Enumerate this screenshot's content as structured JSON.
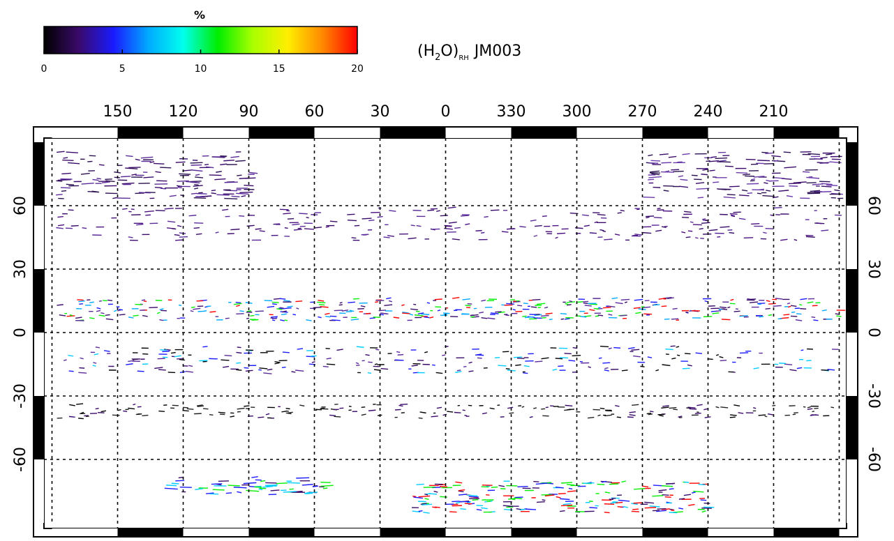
{
  "colorbar": {
    "label": "%",
    "lim": [
      0,
      20
    ],
    "ticks": [
      0,
      5,
      10,
      15,
      20
    ],
    "colors": [
      "#000000",
      "#3a0a6a",
      "#1a1aff",
      "#00aaff",
      "#00ffee",
      "#00ee00",
      "#aaff00",
      "#ffee00",
      "#ff8800",
      "#ff0000"
    ]
  },
  "title": {
    "prefix": "(H",
    "sub1": "2",
    "mid": "O)",
    "sub2": "RH",
    "suffix": "JM003"
  },
  "map": {
    "lonticks": [
      150,
      120,
      90,
      60,
      30,
      0,
      330,
      300,
      270,
      240,
      210
    ],
    "latticks": [
      60,
      30,
      0,
      -30,
      -60
    ],
    "grid": true
  }
}
